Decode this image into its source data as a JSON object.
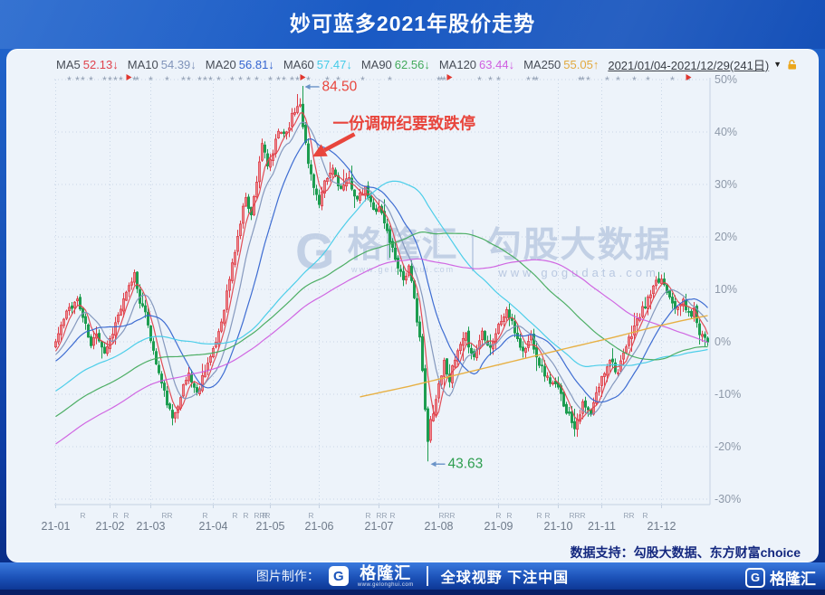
{
  "header": {
    "title": "妙可蓝多2021年股价走势"
  },
  "legend": {
    "items": [
      {
        "label": "MA5",
        "value": "52.13",
        "arrow": "↓",
        "color": "#e0434d"
      },
      {
        "label": "MA10",
        "value": "54.39",
        "arrow": "↓",
        "color": "#8094ba"
      },
      {
        "label": "MA20",
        "value": "56.81",
        "arrow": "↓",
        "color": "#3565d0"
      },
      {
        "label": "MA60",
        "value": "57.47",
        "arrow": "↓",
        "color": "#43cbe8"
      },
      {
        "label": "MA90",
        "value": "62.56",
        "arrow": "↓",
        "color": "#43aa5c"
      },
      {
        "label": "MA120",
        "value": "63.44",
        "arrow": "↓",
        "color": "#cf5fe0"
      },
      {
        "label": "MA250",
        "value": "55.05",
        "arrow": "↑",
        "color": "#e2a93f"
      }
    ],
    "date_range": "2021/01/04-2021/12/29(241日)",
    "dropdown_icon": "▼"
  },
  "chart_data": {
    "type": "candlestick",
    "title": "妙可蓝多2021年股价走势",
    "unit": "percent_change_vs_2021_open",
    "n_days": 241,
    "grid": true,
    "y_axis": {
      "ticks": [
        "50%",
        "40%",
        "30%",
        "20%",
        "10%",
        "0%",
        "-10%",
        "-20%",
        "-30%"
      ],
      "tick_values": [
        50,
        40,
        30,
        20,
        10,
        0,
        -10,
        -20,
        -30
      ],
      "max": 50,
      "min": -30
    },
    "x_axis": {
      "labels": [
        "21-01",
        "21-02",
        "21-03",
        "21-04",
        "21-05",
        "21-06",
        "21-07",
        "21-08",
        "21-09",
        "21-10",
        "21-11",
        "21-12"
      ],
      "month_start_days": [
        0,
        20,
        35,
        58,
        79,
        97,
        119,
        141,
        163,
        185,
        201,
        223
      ]
    },
    "close_pct_anchors": [
      [
        0,
        0
      ],
      [
        2,
        3
      ],
      [
        5,
        6.5
      ],
      [
        8,
        8
      ],
      [
        11,
        3
      ],
      [
        13,
        -1
      ],
      [
        15,
        2
      ],
      [
        18,
        -2
      ],
      [
        20,
        0.5
      ],
      [
        23,
        5
      ],
      [
        26,
        9
      ],
      [
        29,
        13
      ],
      [
        31,
        8
      ],
      [
        34,
        3.5
      ],
      [
        36,
        -2
      ],
      [
        39,
        -8
      ],
      [
        43,
        -15
      ],
      [
        46,
        -10
      ],
      [
        49,
        -6
      ],
      [
        52,
        -10
      ],
      [
        55,
        -5
      ],
      [
        58,
        -2
      ],
      [
        61,
        4
      ],
      [
        64,
        12
      ],
      [
        67,
        20
      ],
      [
        70,
        28
      ],
      [
        72,
        24
      ],
      [
        74,
        31
      ],
      [
        76,
        38
      ],
      [
        78,
        33
      ],
      [
        80,
        36
      ],
      [
        82,
        40
      ],
      [
        85,
        40
      ],
      [
        87,
        43
      ],
      [
        89,
        45
      ],
      [
        90,
        45.2
      ],
      [
        91,
        41
      ],
      [
        92,
        38
      ],
      [
        93,
        34
      ],
      [
        95,
        30
      ],
      [
        97,
        26
      ],
      [
        99,
        30
      ],
      [
        102,
        33
      ],
      [
        105,
        29
      ],
      [
        108,
        31
      ],
      [
        111,
        27
      ],
      [
        114,
        29
      ],
      [
        117,
        25
      ],
      [
        119,
        26
      ],
      [
        122,
        21
      ],
      [
        125,
        16
      ],
      [
        128,
        12
      ],
      [
        130,
        14
      ],
      [
        132,
        8
      ],
      [
        134,
        1
      ],
      [
        135,
        -6
      ],
      [
        136,
        -13
      ],
      [
        137,
        -19
      ],
      [
        138,
        -15
      ],
      [
        140,
        -11
      ],
      [
        141,
        -8
      ],
      [
        143,
        -4
      ],
      [
        145,
        -7
      ],
      [
        148,
        -2
      ],
      [
        151,
        1
      ],
      [
        154,
        -3
      ],
      [
        157,
        2
      ],
      [
        160,
        -1
      ],
      [
        163,
        3
      ],
      [
        166,
        6
      ],
      [
        169,
        2
      ],
      [
        172,
        -2
      ],
      [
        175,
        1
      ],
      [
        178,
        -4
      ],
      [
        181,
        -7
      ],
      [
        185,
        -9
      ],
      [
        188,
        -13
      ],
      [
        191,
        -16
      ],
      [
        194,
        -12
      ],
      [
        197,
        -14
      ],
      [
        199,
        -10
      ],
      [
        201,
        -7
      ],
      [
        204,
        -3
      ],
      [
        207,
        -6
      ],
      [
        210,
        -1
      ],
      [
        213,
        3
      ],
      [
        216,
        6
      ],
      [
        219,
        9
      ],
      [
        221,
        11
      ],
      [
        223,
        12
      ],
      [
        226,
        9
      ],
      [
        229,
        6
      ],
      [
        231,
        8
      ],
      [
        233,
        5
      ],
      [
        235,
        6
      ],
      [
        237,
        2
      ],
      [
        239,
        1
      ],
      [
        240,
        0.5
      ]
    ],
    "ma_windows": [
      {
        "window": 5,
        "color": "#e0434d"
      },
      {
        "window": 10,
        "color": "#8094ba"
      },
      {
        "window": 20,
        "color": "#3565d0"
      },
      {
        "window": 60,
        "color": "#43cbe8"
      },
      {
        "window": 90,
        "color": "#43aa5c"
      },
      {
        "window": 120,
        "color": "#cf5fe0"
      }
    ],
    "ma250_pct_anchors": [
      [
        112,
        -10.5
      ],
      [
        130,
        -8.5
      ],
      [
        150,
        -6
      ],
      [
        170,
        -3.5
      ],
      [
        190,
        -1
      ],
      [
        205,
        0.8
      ],
      [
        220,
        2.8
      ],
      [
        232,
        4.2
      ],
      [
        240,
        5
      ]
    ],
    "ma250_color": "#e7b044",
    "up_color": "#de3f49",
    "down_color": "#1d9d50",
    "key_points": [
      {
        "label": "84.50",
        "day": 91,
        "pct": 48.8,
        "type": "high",
        "color": "#e8453c"
      },
      {
        "label": "43.63",
        "day": 137,
        "pct": -22.8,
        "type": "low",
        "color": "#2e9e4f"
      }
    ],
    "callout": {
      "text": "一份调研纪要致跌停",
      "color": "#e8453c",
      "text_day": 102,
      "text_pct": 40.6,
      "arrow_from_day": 110,
      "arrow_from_pct": 39.6,
      "arrow_to_day": 94.5,
      "arrow_to_pct": 35.3
    },
    "markers": {
      "stars_days": [
        5,
        8,
        10,
        13,
        18,
        20,
        22,
        24,
        29,
        30,
        35,
        41,
        47,
        49,
        53,
        55,
        57,
        60,
        65,
        68,
        71,
        74,
        79,
        82,
        84,
        87,
        89,
        93,
        100,
        104,
        113,
        123,
        141,
        142,
        143,
        156,
        160,
        163,
        174,
        176,
        177,
        193,
        194,
        196,
        203,
        207,
        213,
        218,
        227,
        233
      ],
      "flags_days": [
        26,
        90,
        144,
        232
      ],
      "r_days": [
        10,
        22,
        26,
        40,
        42,
        55,
        66,
        70,
        74,
        76,
        77,
        78,
        94,
        115,
        119,
        121,
        124,
        142,
        144,
        146,
        163,
        167,
        178,
        181,
        190,
        192,
        194,
        210,
        212,
        217
      ]
    }
  },
  "watermark": {
    "logo_letter": "G",
    "brand": "格隆汇",
    "brand_url": "www.gelonghui.com",
    "separator": "|",
    "name": "勾股大数据",
    "url": "www.gogudata.com"
  },
  "support_note": "数据支持：勾股大数据、东方财富choice",
  "footer": {
    "made_by": "图片制作：",
    "logo_letter": "G",
    "brand": "格隆汇",
    "brand_url": "www.gelonghui.com",
    "slogan": "全球视野 下注中国",
    "right_logo_letter": "G",
    "right_brand": "格隆汇"
  }
}
